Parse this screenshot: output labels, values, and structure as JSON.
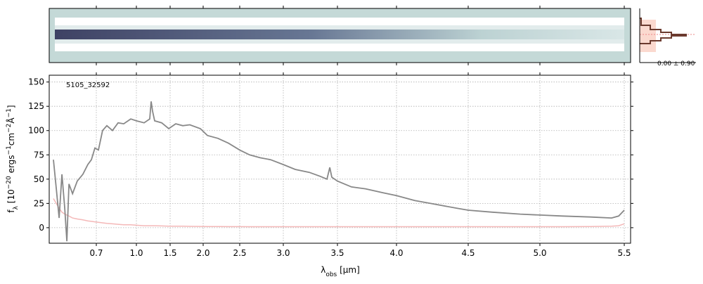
{
  "chart_data": {
    "type": "line",
    "annotation": "5105_32592",
    "profile_label": "0.00 ± 0.90",
    "xlabel_parts": [
      "λ",
      "obs",
      " [μm]"
    ],
    "ylabel_parts": [
      "f",
      "λ",
      " [10",
      "−20",
      " ergs",
      "−1",
      "cm",
      "−2",
      "Å",
      "−1",
      "]"
    ],
    "xlim": [
      0.5,
      5.54
    ],
    "xticks": [
      0.7,
      {
        "value": 1,
        "label": "1.0"
      },
      1.5,
      {
        "value": 2,
        "label": "2.0"
      },
      2.5,
      {
        "value": 3,
        "label": "3.0"
      },
      3.5,
      {
        "value": 4,
        "label": "4.0"
      },
      4.5,
      {
        "value": 5,
        "label": "5.0"
      },
      5.5
    ],
    "ylim": [
      -16,
      157
    ],
    "yticks": [
      0,
      25,
      50,
      75,
      100,
      125,
      150
    ],
    "grid": true,
    "x": [
      0.518,
      0.53,
      0.542,
      0.554,
      0.566,
      0.575,
      0.584,
      0.599,
      0.619,
      0.643,
      0.664,
      0.679,
      0.694,
      0.716,
      0.747,
      0.779,
      0.821,
      0.863,
      0.905,
      0.958,
      1.0,
      1.115,
      1.198,
      1.219,
      1.24,
      1.271,
      1.375,
      1.479,
      1.585,
      1.691,
      1.798,
      1.957,
      2.058,
      2.202,
      2.346,
      2.5,
      2.613,
      2.734,
      2.855,
      3.0,
      3.11,
      3.24,
      3.338,
      3.403,
      3.429,
      3.448,
      3.5,
      3.619,
      3.738,
      3.887,
      4.0,
      4.127,
      4.275,
      4.422,
      4.5,
      4.667,
      4.863,
      5.0,
      5.133,
      5.3,
      5.425,
      5.467,
      5.5
    ],
    "series": [
      {
        "color": "#888888",
        "values": [
          70,
          40,
          10,
          55,
          20,
          -14,
          45,
          35,
          48,
          55,
          65,
          70,
          82,
          80,
          100,
          105,
          100,
          108,
          107,
          112,
          110,
          108,
          112,
          130,
          120,
          110,
          108,
          102,
          107,
          105,
          106,
          102,
          95,
          92,
          87,
          80,
          75,
          72,
          70,
          65,
          60,
          57,
          53,
          50,
          62,
          52,
          48,
          42,
          40,
          36,
          33,
          28,
          24,
          20,
          18,
          16,
          14,
          13,
          12,
          11,
          10,
          12,
          18
        ]
      },
      {
        "color": "#f4b8b8",
        "values": [
          30,
          25,
          20,
          16,
          14,
          13,
          12,
          10,
          9,
          8,
          7,
          6.5,
          6,
          5.5,
          5,
          4.5,
          4,
          3.5,
          3,
          3,
          2.5,
          2,
          2,
          2,
          2,
          2,
          1.8,
          1.6,
          1.5,
          1.5,
          1.4,
          1.3,
          1.2,
          1.2,
          1.1,
          1.1,
          1,
          1,
          1,
          1,
          1,
          1,
          1,
          1,
          1,
          1,
          1,
          1,
          1,
          1,
          1,
          1,
          1,
          1,
          1,
          1,
          1,
          1,
          1,
          1.2,
          1.5,
          2,
          4
        ]
      }
    ]
  }
}
